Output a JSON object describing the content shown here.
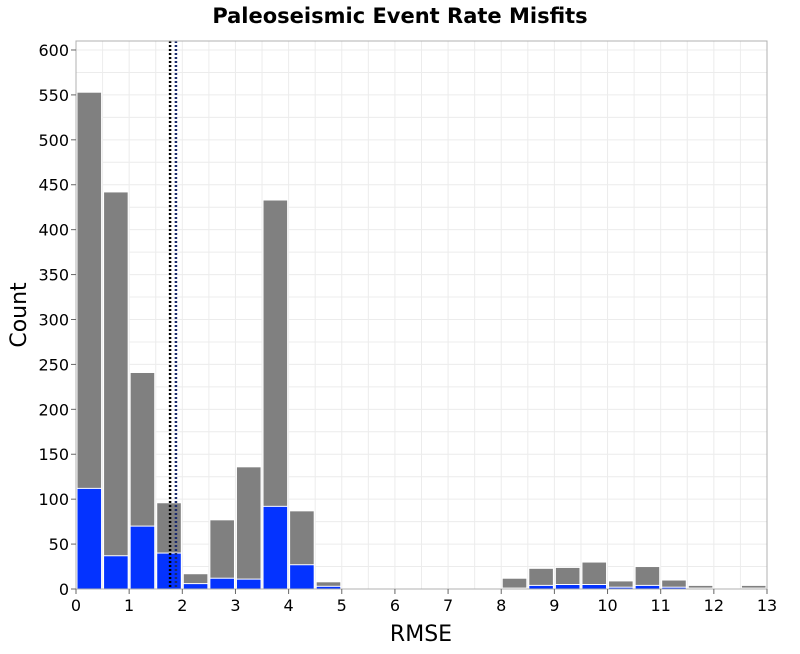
{
  "chart_data": {
    "type": "bar",
    "title": "Paleoseismic Event Rate Misfits",
    "xlabel": "RMSE",
    "ylabel": "Count",
    "xlim": [
      0,
      13
    ],
    "ylim": [
      0,
      610
    ],
    "bin_width": 0.5,
    "x_ticks": [
      "0",
      "1",
      "2",
      "3",
      "4",
      "5",
      "6",
      "7",
      "8",
      "9",
      "10",
      "11",
      "12",
      "13"
    ],
    "y_ticks": [
      "0",
      "50",
      "100",
      "150",
      "200",
      "250",
      "300",
      "350",
      "400",
      "450",
      "500",
      "550",
      "600"
    ],
    "grid": true,
    "series": [
      {
        "color": "#808080",
        "bins": [
          {
            "x": 0.25,
            "value": 553
          },
          {
            "x": 0.75,
            "value": 442
          },
          {
            "x": 1.25,
            "value": 241
          },
          {
            "x": 1.75,
            "value": 96
          },
          {
            "x": 2.25,
            "value": 17
          },
          {
            "x": 2.75,
            "value": 77
          },
          {
            "x": 3.25,
            "value": 136
          },
          {
            "x": 3.75,
            "value": 433
          },
          {
            "x": 4.25,
            "value": 87
          },
          {
            "x": 4.75,
            "value": 8
          },
          {
            "x": 8.25,
            "value": 12
          },
          {
            "x": 8.75,
            "value": 23
          },
          {
            "x": 9.25,
            "value": 24
          },
          {
            "x": 9.75,
            "value": 30
          },
          {
            "x": 10.25,
            "value": 9
          },
          {
            "x": 10.75,
            "value": 25
          },
          {
            "x": 11.25,
            "value": 10
          },
          {
            "x": 11.75,
            "value": 4
          },
          {
            "x": 12.75,
            "value": 4
          }
        ]
      },
      {
        "color": "#0433ff",
        "bins": [
          {
            "x": 0.25,
            "value": 112
          },
          {
            "x": 0.75,
            "value": 37
          },
          {
            "x": 1.25,
            "value": 70
          },
          {
            "x": 1.75,
            "value": 40
          },
          {
            "x": 2.25,
            "value": 6
          },
          {
            "x": 2.75,
            "value": 12
          },
          {
            "x": 3.25,
            "value": 11
          },
          {
            "x": 3.75,
            "value": 92
          },
          {
            "x": 4.25,
            "value": 27
          },
          {
            "x": 4.75,
            "value": 3
          },
          {
            "x": 8.25,
            "value": 1
          },
          {
            "x": 8.75,
            "value": 4
          },
          {
            "x": 9.25,
            "value": 5
          },
          {
            "x": 9.75,
            "value": 5
          },
          {
            "x": 10.25,
            "value": 2
          },
          {
            "x": 10.75,
            "value": 4
          },
          {
            "x": 11.25,
            "value": 2
          },
          {
            "x": 11.75,
            "value": 1
          },
          {
            "x": 12.75,
            "value": 1
          }
        ]
      }
    ],
    "reference_lines": [
      {
        "x": 1.77,
        "color": "#000000",
        "style": "dotted"
      },
      {
        "x": 1.88,
        "color": "#1a2a6c",
        "style": "dotted"
      }
    ]
  }
}
